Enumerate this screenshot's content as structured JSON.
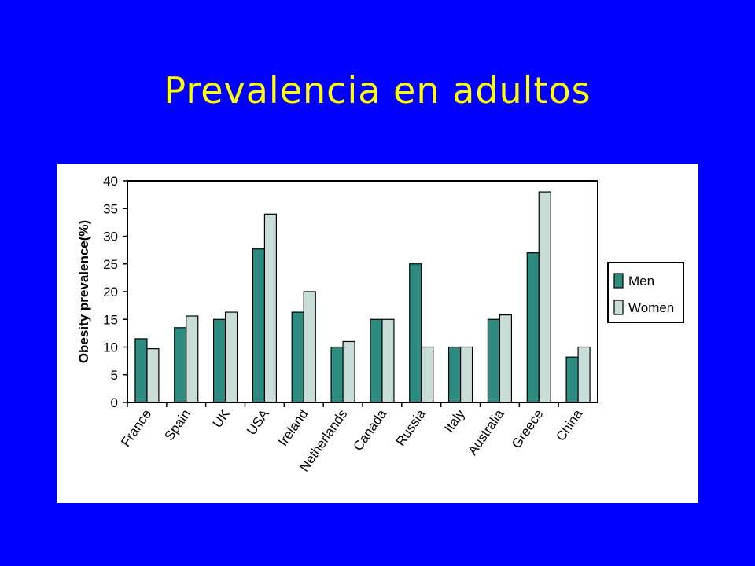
{
  "slide": {
    "title": "Prevalencia en adultos",
    "background_color": "#0000ff",
    "title_color": "#ffff00"
  },
  "chart_data": {
    "type": "bar",
    "title": "",
    "xlabel": "",
    "ylabel": "Obesity prevalence(%)",
    "ylim": [
      0,
      40
    ],
    "yticks": [
      0,
      5,
      10,
      15,
      20,
      25,
      30,
      35,
      40
    ],
    "categories": [
      "France",
      "Spain",
      "UK",
      "USA",
      "Ireland",
      "Netherlands",
      "Canada",
      "Russia",
      "Italy",
      "Australia",
      "Greece",
      "China"
    ],
    "series": [
      {
        "name": "Men",
        "color": "#2e8b80",
        "values": [
          11.5,
          13.5,
          15,
          27.7,
          16.3,
          10,
          15,
          25,
          10,
          15,
          27,
          8.2
        ]
      },
      {
        "name": "Women",
        "color": "#c8dcd8",
        "values": [
          9.7,
          15.6,
          16.3,
          34,
          20,
          11,
          15,
          10,
          10,
          15.8,
          38,
          10
        ]
      }
    ],
    "legend_position": "right",
    "grid": false
  }
}
